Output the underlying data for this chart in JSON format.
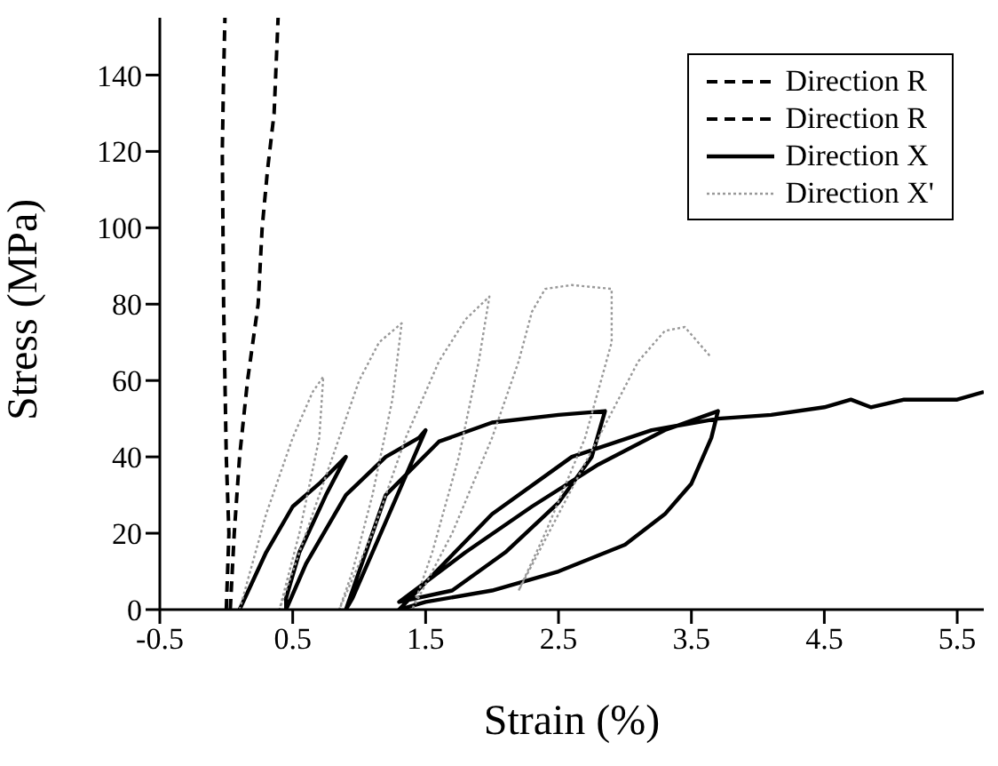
{
  "chart_data": {
    "type": "line",
    "xlabel": "Strain (%)",
    "ylabel": "Stress (MPa)",
    "xlim": [
      -0.5,
      5.7
    ],
    "xticks": [
      -0.5,
      0.5,
      1.5,
      2.5,
      3.5,
      4.5,
      5.5
    ],
    "ylim": [
      0,
      155
    ],
    "yticks": [
      0,
      20,
      40,
      60,
      80,
      100,
      120,
      140
    ],
    "grid": false,
    "legend": "top right",
    "marker": "none",
    "series": [
      {
        "name": "Direction R",
        "color": "#000000",
        "line_style": "dashed",
        "x": [
          0.0,
          0.02,
          0.0,
          -0.02,
          -0.03,
          -0.02,
          -0.01
        ],
        "values": [
          0,
          20,
          40,
          80,
          120,
          140,
          155
        ]
      },
      {
        "name": "Direction R",
        "color": "#000000",
        "line_style": "dashed",
        "x": [
          0.03,
          0.06,
          0.1,
          0.16,
          0.24,
          0.27,
          0.31,
          0.36,
          0.39
        ],
        "values": [
          0,
          20,
          40,
          60,
          80,
          100,
          115,
          130,
          155
        ]
      },
      {
        "name": "Direction X",
        "color": "#000000",
        "line_style": "solid",
        "x": [
          0.1,
          0.3,
          0.5,
          0.7,
          0.9,
          0.75,
          0.55,
          0.45,
          0.45,
          0.6,
          0.9,
          1.2,
          1.45,
          1.5,
          1.35,
          1.1,
          0.95,
          0.9,
          1.2,
          1.6,
          2.0,
          2.5,
          2.85,
          2.75,
          2.5,
          2.1,
          1.7,
          1.3,
          1.8,
          2.3,
          2.8,
          3.3,
          3.7,
          3.65,
          3.5,
          3.3,
          3.0,
          2.5,
          2.0,
          1.5,
          1.3,
          2.0,
          2.6,
          3.2,
          3.7,
          4.1,
          4.5,
          4.7,
          4.85,
          5.1,
          5.5,
          5.7
        ],
        "values": [
          0,
          15,
          27,
          33,
          40,
          30,
          15,
          3,
          0,
          12,
          30,
          40,
          45,
          47,
          35,
          15,
          3,
          0,
          30,
          44,
          49,
          51,
          52,
          40,
          28,
          15,
          5,
          2,
          15,
          27,
          38,
          47,
          52,
          45,
          33,
          25,
          17,
          10,
          5,
          2,
          0,
          25,
          40,
          47,
          50,
          51,
          53,
          55,
          53,
          55,
          55,
          57
        ]
      },
      {
        "name": "Direction X'",
        "color": "#999999",
        "line_style": "dotted",
        "x": [
          0.1,
          0.3,
          0.5,
          0.65,
          0.73,
          0.7,
          0.55,
          0.4,
          0.6,
          0.85,
          1.0,
          1.15,
          1.32,
          1.25,
          1.1,
          0.95,
          0.85,
          1.1,
          1.35,
          1.6,
          1.8,
          1.98,
          1.9,
          1.75,
          1.55,
          1.4,
          1.7,
          2.0,
          2.2,
          2.3,
          2.4,
          2.6,
          2.9,
          2.9,
          2.7,
          2.4,
          2.2,
          2.5,
          2.8,
          3.1,
          3.3,
          3.45,
          3.55,
          3.65
        ],
        "values": [
          0,
          25,
          45,
          57,
          61,
          45,
          20,
          0,
          20,
          45,
          60,
          70,
          75,
          55,
          30,
          10,
          0,
          20,
          45,
          65,
          76,
          82,
          65,
          40,
          15,
          0,
          20,
          45,
          65,
          78,
          84,
          85,
          84,
          70,
          45,
          20,
          5,
          25,
          45,
          65,
          73,
          74,
          70,
          66
        ]
      }
    ]
  }
}
